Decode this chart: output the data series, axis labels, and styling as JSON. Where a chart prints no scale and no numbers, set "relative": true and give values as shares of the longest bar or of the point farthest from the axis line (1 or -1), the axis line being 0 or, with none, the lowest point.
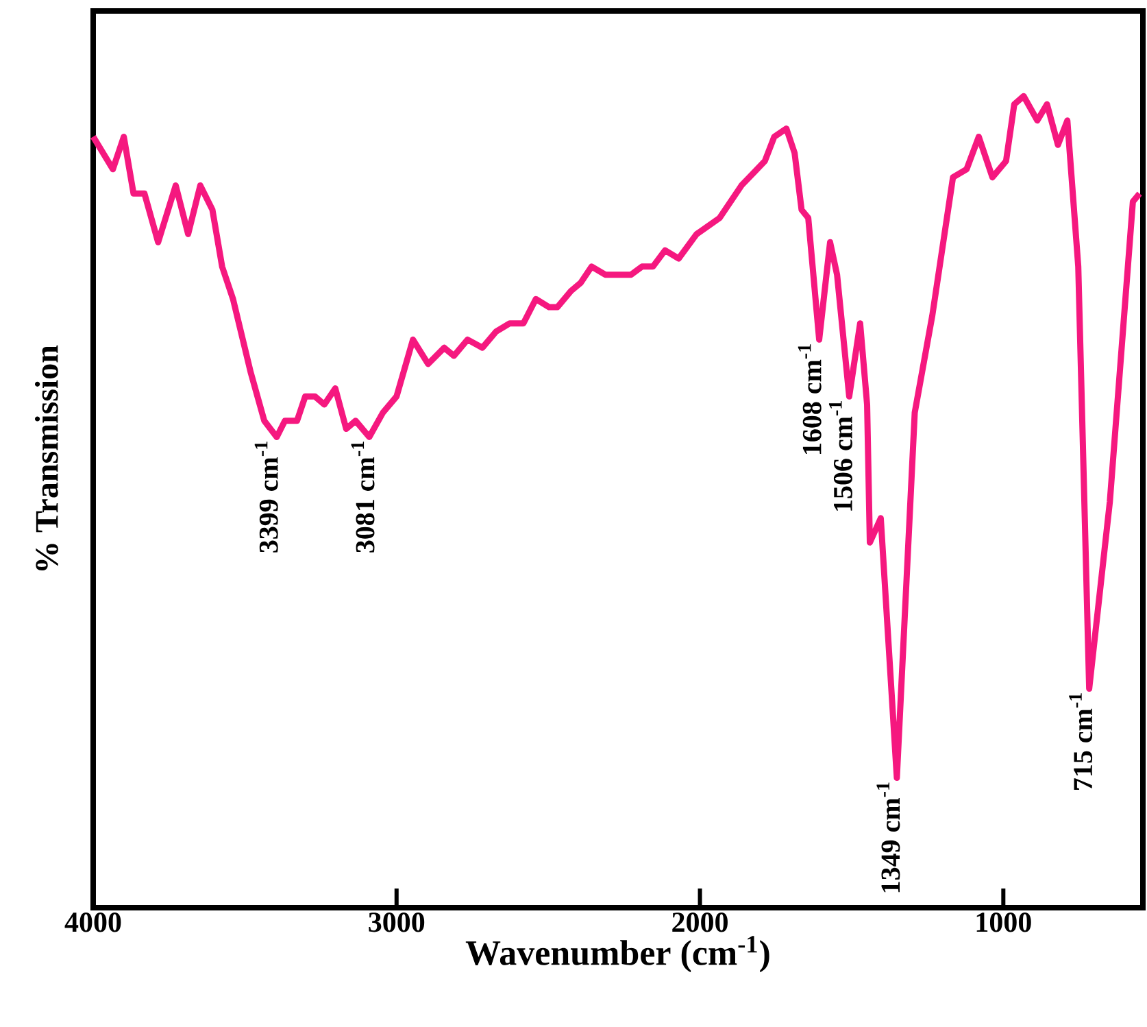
{
  "chart_data": {
    "type": "line",
    "relative": true,
    "xlabel": "Wavenumber (cm$^{-1}$)",
    "ylabel": "% Transmission",
    "xlim": [
      4000,
      540
    ],
    "xticks": [
      4000,
      3000,
      2000,
      1000
    ],
    "series": [
      {
        "color": "#f5187f",
        "x": [
          4000,
          3935,
          3899,
          3867,
          3831,
          3786,
          3728,
          3687,
          3647,
          3607,
          3575,
          3539,
          3481,
          3436,
          3395,
          3368,
          3328,
          3301,
          3269,
          3238,
          3202,
          3166,
          3135,
          3090,
          3045,
          3000,
          2946,
          2896,
          2843,
          2811,
          2766,
          2717,
          2672,
          2627,
          2582,
          2541,
          2497,
          2470,
          2425,
          2393,
          2357,
          2312,
          2281,
          2227,
          2191,
          2155,
          2115,
          2070,
          2011,
          1935,
          1863,
          1786,
          1755,
          1715,
          1688,
          1665,
          1643,
          1607,
          1571,
          1548,
          1508,
          1472,
          1449,
          1440,
          1404,
          1351,
          1292,
          1234,
          1166,
          1121,
          1081,
          1036,
          991,
          964,
          933,
          888,
          856,
          820,
          789,
          753,
          717,
          649,
          573,
          551
        ],
        "values": [
          0.95,
          0.91,
          0.95,
          0.88,
          0.88,
          0.82,
          0.89,
          0.83,
          0.89,
          0.86,
          0.79,
          0.75,
          0.66,
          0.6,
          0.58,
          0.6,
          0.6,
          0.63,
          0.63,
          0.62,
          0.64,
          0.59,
          0.6,
          0.58,
          0.61,
          0.63,
          0.7,
          0.67,
          0.69,
          0.68,
          0.7,
          0.69,
          0.71,
          0.72,
          0.72,
          0.75,
          0.74,
          0.74,
          0.76,
          0.77,
          0.79,
          0.78,
          0.78,
          0.78,
          0.79,
          0.79,
          0.81,
          0.8,
          0.83,
          0.85,
          0.89,
          0.92,
          0.95,
          0.96,
          0.93,
          0.86,
          0.85,
          0.7,
          0.82,
          0.78,
          0.63,
          0.72,
          0.62,
          0.45,
          0.48,
          0.16,
          0.61,
          0.73,
          0.9,
          0.91,
          0.95,
          0.9,
          0.92,
          0.99,
          1.0,
          0.97,
          0.99,
          0.94,
          0.97,
          0.79,
          0.27,
          0.5,
          0.87,
          0.88
        ]
      }
    ],
    "annotations": [
      {
        "text": "3399 cm$^{-1}$",
        "x": 3399,
        "y": 0.58
      },
      {
        "text": "3081 cm$^{-1}$",
        "x": 3081,
        "y": 0.58
      },
      {
        "text": "1608 cm$^{-1}$",
        "x": 1608,
        "y": 0.7
      },
      {
        "text": "1506 cm$^{-1}$",
        "x": 1506,
        "y": 0.63
      },
      {
        "text": "1349 cm$^{-1}$",
        "x": 1349,
        "y": 0.16
      },
      {
        "text": "715 cm$^{-1}$",
        "x": 715,
        "y": 0.27
      }
    ]
  }
}
